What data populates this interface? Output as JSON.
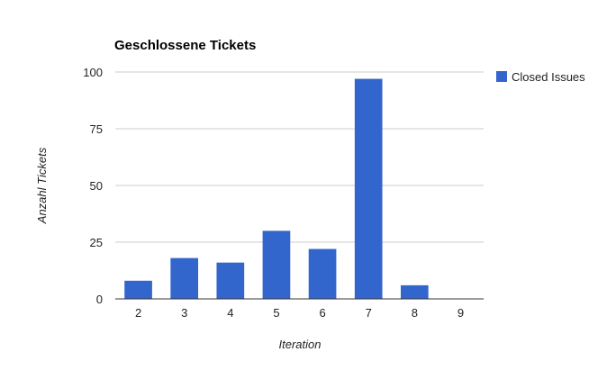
{
  "chart_data": {
    "type": "bar",
    "title": "Geschlossene Tickets",
    "xlabel": "Iteration",
    "ylabel": "Anzahl Tickets",
    "categories": [
      "2",
      "3",
      "4",
      "5",
      "6",
      "7",
      "8",
      "9"
    ],
    "series": [
      {
        "name": "Closed Issues",
        "values": [
          8,
          18,
          16,
          30,
          22,
          97,
          6,
          0
        ],
        "color": "#3366cc"
      }
    ],
    "ylim": [
      0,
      100
    ],
    "yticks": [
      "0",
      "25",
      "50",
      "75",
      "100"
    ],
    "grid": true,
    "legend_position": "right"
  }
}
